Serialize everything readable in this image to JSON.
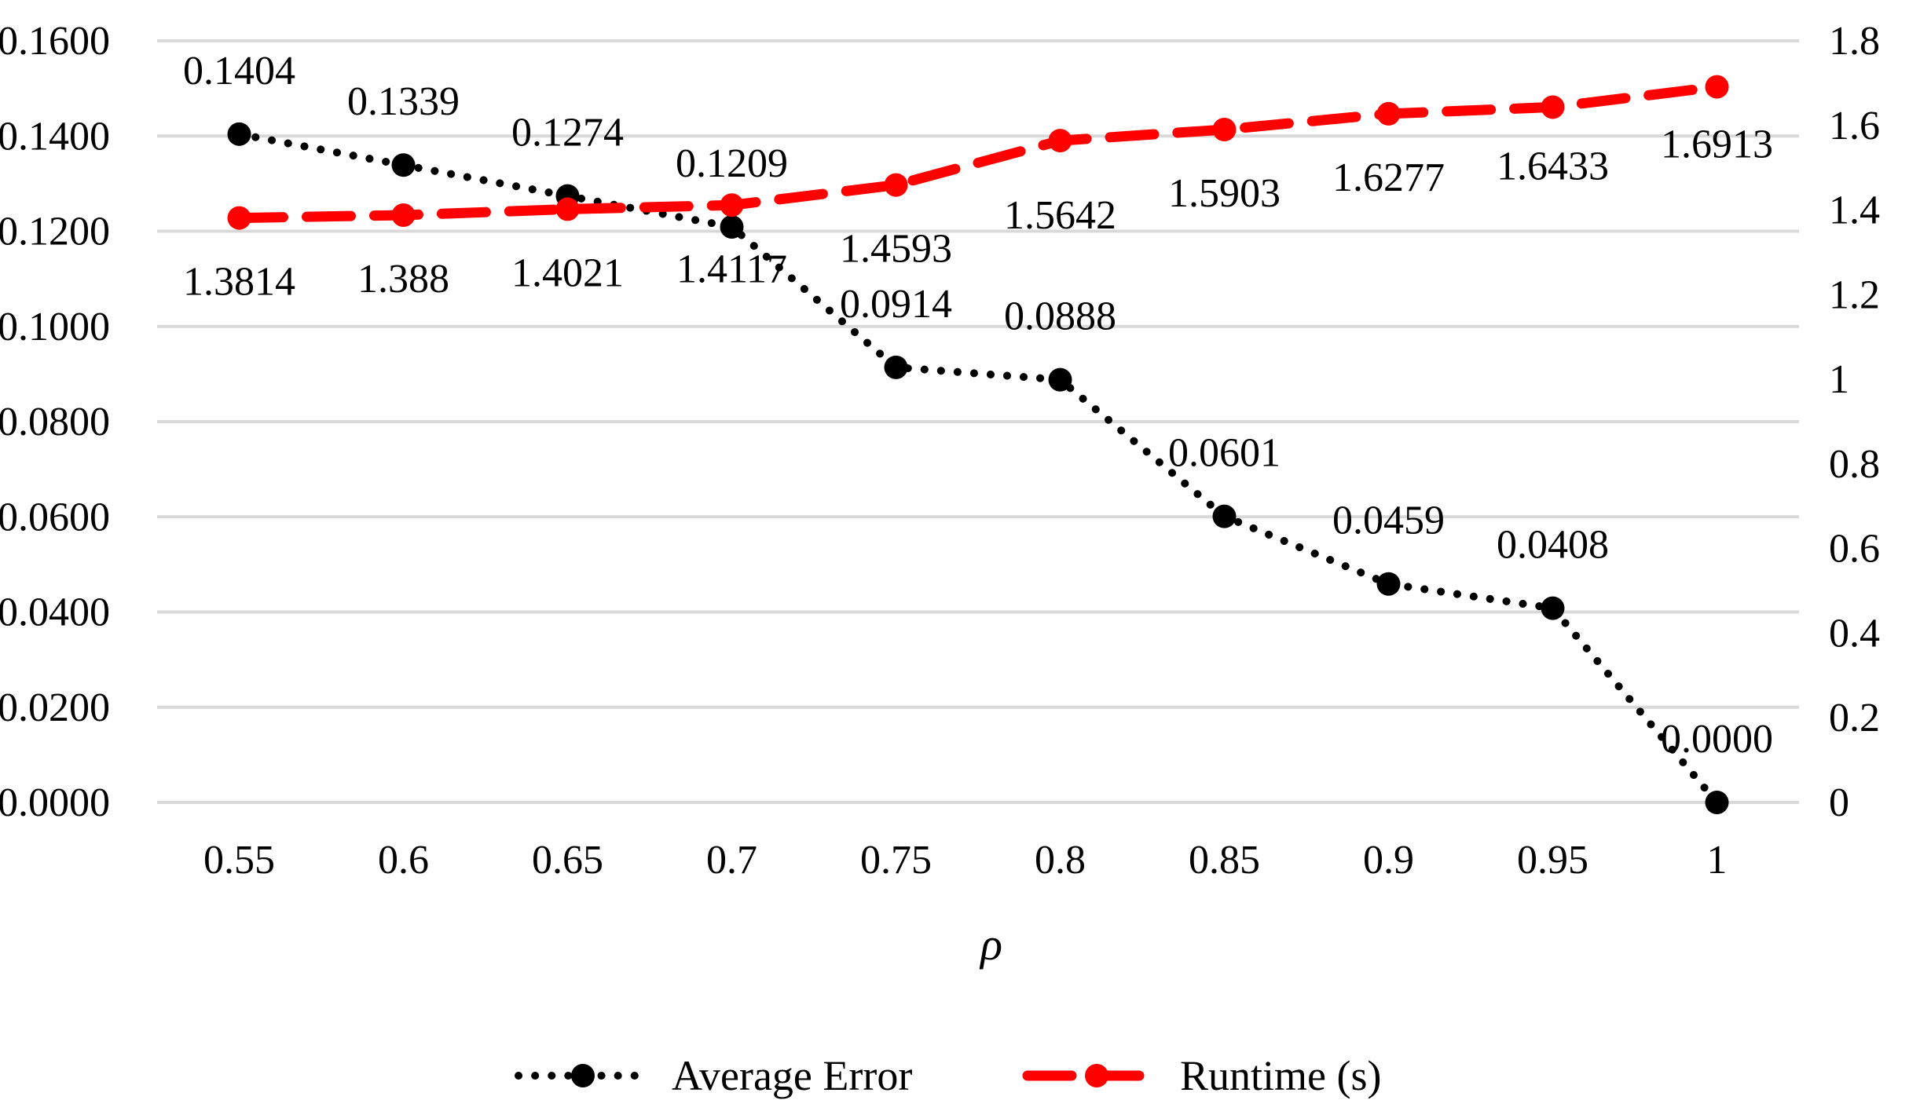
{
  "chart_data": {
    "type": "line",
    "title": "",
    "xlabel": "ρ",
    "ylabel": "",
    "y2label": "",
    "x": [
      "0.55",
      "0.6",
      "0.65",
      "0.7",
      "0.75",
      "0.8",
      "0.85",
      "0.9",
      "0.95",
      "1"
    ],
    "ylim": [
      0,
      0.16
    ],
    "y_ticks": [
      "0.0000",
      "0.0200",
      "0.0400",
      "0.0600",
      "0.0800",
      "0.1000",
      "0.1200",
      "0.1400",
      "0.1600"
    ],
    "y2lim": [
      0,
      1.8
    ],
    "y2_ticks": [
      "0",
      "0.2",
      "0.4",
      "0.6",
      "0.8",
      "1",
      "1.2",
      "1.4",
      "1.6",
      "1.8"
    ],
    "grid": true,
    "legend_position": "bottom",
    "series": [
      {
        "name": "Average Error",
        "axis": "left",
        "color": "#000000",
        "line_style": "dotted",
        "values": [
          0.1404,
          0.1339,
          0.1274,
          0.1209,
          0.0914,
          0.0888,
          0.0601,
          0.0459,
          0.0408,
          0.0
        ],
        "labels": [
          "0.1404",
          "0.1339",
          "0.1274",
          "0.1209",
          "0.0914",
          "0.0888",
          "0.0601",
          "0.0459",
          "0.0408",
          "0.0000"
        ]
      },
      {
        "name": "Runtime (s)",
        "axis": "right",
        "color": "#ff0000",
        "line_style": "dashed",
        "values": [
          1.3814,
          1.388,
          1.4021,
          1.4117,
          1.4593,
          1.5642,
          1.5903,
          1.6277,
          1.6433,
          1.6913
        ],
        "labels": [
          "1.3814",
          "1.388",
          "1.4021",
          "1.4117",
          "1.4593",
          "1.5642",
          "1.5903",
          "1.6277",
          "1.6433",
          "1.6913"
        ]
      }
    ]
  }
}
